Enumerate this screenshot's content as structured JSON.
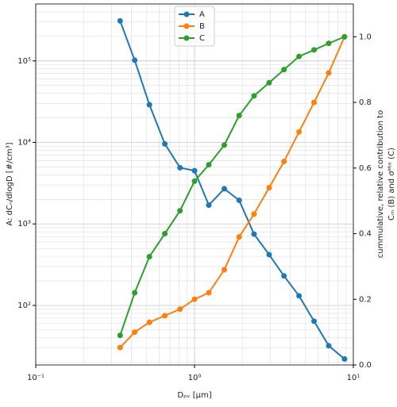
{
  "chart_data": {
    "type": "line",
    "x_label": "Dₚᵥ [µm]",
    "y_label": "A: dCₙ/dlogD [#/cm³]",
    "y2_label": [
      "cummulative, relative contribution to",
      "Cₘ (B) and σᴹⁱᵉ (C)"
    ],
    "x": [
      0.34,
      0.42,
      0.52,
      0.65,
      0.81,
      1.0,
      1.23,
      1.54,
      1.91,
      2.37,
      2.95,
      3.66,
      4.55,
      5.66,
      7.0,
      8.8
    ],
    "series": [
      {
        "name": "A",
        "color": "#1f77b4",
        "axis": "y",
        "values": [
          310000,
          102000,
          29000,
          9600,
          4900,
          4500,
          1700,
          2700,
          1950,
          750,
          420,
          230,
          131,
          64,
          32,
          22
        ]
      },
      {
        "name": "B",
        "color": "#ff7f0e",
        "axis": "y2",
        "values": [
          0.053,
          0.1,
          0.13,
          0.15,
          0.17,
          0.2,
          0.22,
          0.29,
          0.39,
          0.46,
          0.54,
          0.62,
          0.71,
          0.8,
          0.89,
          1.0
        ]
      },
      {
        "name": "C",
        "color": "#2ca02c",
        "axis": "y2",
        "values": [
          0.09,
          0.22,
          0.33,
          0.4,
          0.47,
          0.56,
          0.61,
          0.67,
          0.76,
          0.82,
          0.86,
          0.9,
          0.94,
          0.96,
          0.98,
          1.0
        ]
      }
    ],
    "x_log": true,
    "y_log": true,
    "xlim": [
      0.1,
      10
    ],
    "ylim": [
      18.6,
      500000
    ],
    "y2lim": [
      0,
      1.1
    ],
    "xticks": [
      {
        "value": 0.1,
        "label": "10⁻¹"
      },
      {
        "value": 1,
        "label": "10⁰"
      },
      {
        "value": 10,
        "label": "10¹"
      }
    ],
    "xminorticks": [
      0.2,
      0.3,
      0.4,
      0.5,
      0.6,
      0.7,
      0.8,
      0.9,
      2,
      3,
      4,
      5,
      6,
      7,
      8,
      9
    ],
    "yticks": [
      {
        "value": 100,
        "label": "10²"
      },
      {
        "value": 1000,
        "label": "10³"
      },
      {
        "value": 10000,
        "label": "10⁴"
      },
      {
        "value": 100000,
        "label": "10⁵"
      }
    ],
    "yminorticks": [
      20,
      30,
      40,
      50,
      60,
      70,
      80,
      90,
      200,
      300,
      400,
      500,
      600,
      700,
      800,
      900,
      2000,
      3000,
      4000,
      5000,
      6000,
      7000,
      8000,
      9000,
      20000,
      30000,
      40000,
      50000,
      60000,
      70000,
      80000,
      90000,
      200000,
      300000,
      400000
    ],
    "y2ticks": [
      {
        "value": 0,
        "label": "0.0"
      },
      0.2,
      0.4,
      0.6,
      0.8,
      {
        "value": 1,
        "label": "1.0"
      }
    ],
    "grid": true,
    "legend": "upper center"
  }
}
